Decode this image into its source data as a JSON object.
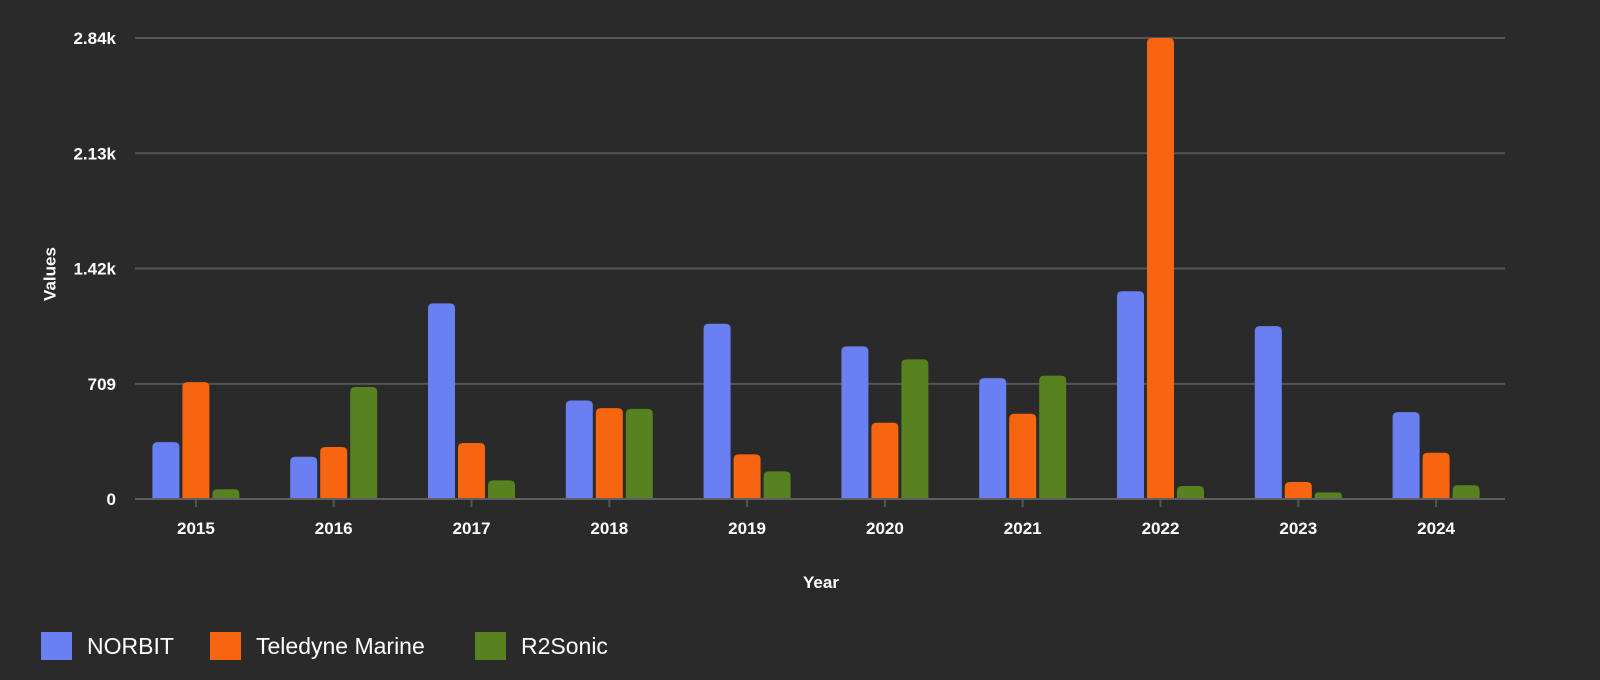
{
  "chart_data": {
    "type": "bar",
    "title": "",
    "xlabel": "Year",
    "ylabel": "Values",
    "categories": [
      "2015",
      "2016",
      "2017",
      "2018",
      "2019",
      "2020",
      "2021",
      "2022",
      "2023",
      "2024"
    ],
    "series": [
      {
        "name": "NORBIT",
        "color": "#6a7ff2",
        "values": [
          350,
          260,
          1205,
          607,
          1080,
          940,
          745,
          1280,
          1065,
          535
        ]
      },
      {
        "name": "Teledyne Marine",
        "color": "#f76510",
        "values": [
          720,
          320,
          345,
          560,
          275,
          470,
          525,
          2840,
          105,
          285
        ]
      },
      {
        "name": "R2Sonic",
        "color": "#578220",
        "values": [
          60,
          690,
          115,
          555,
          170,
          860,
          760,
          80,
          40,
          85
        ]
      }
    ],
    "yticks": [
      0,
      709,
      1420,
      2130,
      2840
    ],
    "ytick_labels": [
      "0",
      "709",
      "1.42k",
      "2.13k",
      "2.84k"
    ],
    "ylim": [
      0,
      2840
    ],
    "grid": true,
    "legend_position": "bottom-left",
    "background": "#2a2a2a",
    "grid_color": "#555555"
  }
}
